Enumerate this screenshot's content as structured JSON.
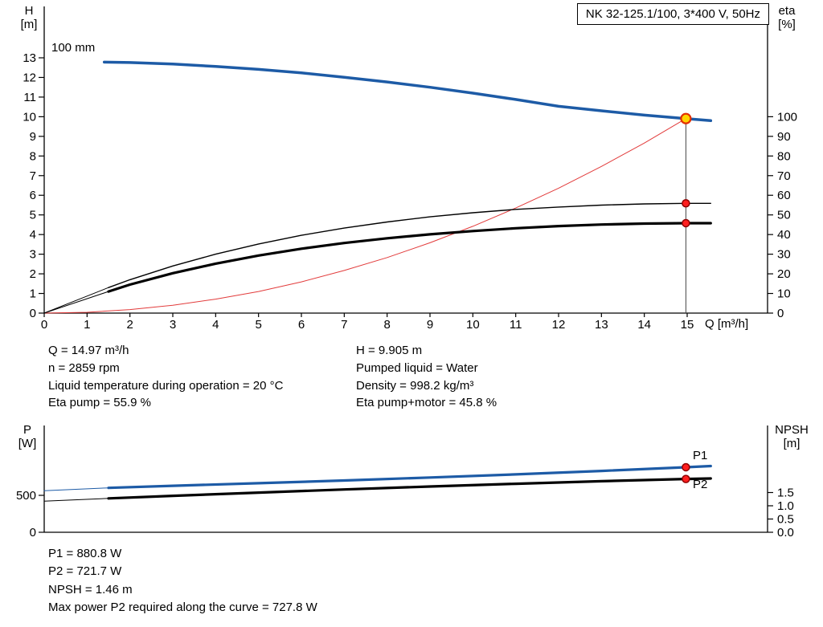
{
  "window": {
    "background": "#ffffff"
  },
  "title_box": {
    "text": "NK 32-125.1/100, 3*400 V, 50Hz"
  },
  "chart_data": [
    {
      "type": "line",
      "name": "qh-eta-chart",
      "x_axis": {
        "label": "Q [m³/h]",
        "min": 0,
        "max": 16.9,
        "ticks": [
          0,
          1,
          2,
          3,
          4,
          5,
          6,
          7,
          8,
          9,
          10,
          11,
          12,
          13,
          14,
          15
        ]
      },
      "y_left": {
        "label_lines": [
          "H",
          "[m]"
        ],
        "min": 0,
        "max": 15.6,
        "ticks": [
          0,
          1,
          2,
          3,
          4,
          5,
          6,
          7,
          8,
          9,
          10,
          11,
          12,
          13
        ]
      },
      "y_right": {
        "label_lines": [
          "eta",
          "[%]"
        ],
        "min": 0,
        "max": 156,
        "ticks": [
          0,
          10,
          20,
          30,
          40,
          50,
          60,
          70,
          80,
          90,
          100
        ]
      },
      "curve_label": "100 mm",
      "grid": false,
      "duty_point": {
        "q": 14.97,
        "h": 9.905
      },
      "curves": [
        {
          "name": "system-curve",
          "axis": "left",
          "color": "#e23b3b",
          "width": 1,
          "points": [
            [
              0,
              0
            ],
            [
              1,
              0.04
            ],
            [
              2,
              0.18
            ],
            [
              3,
              0.4
            ],
            [
              4,
              0.71
            ],
            [
              5,
              1.1
            ],
            [
              6,
              1.59
            ],
            [
              7,
              2.17
            ],
            [
              8,
              2.83
            ],
            [
              9,
              3.58
            ],
            [
              10,
              4.42
            ],
            [
              11,
              5.35
            ],
            [
              12,
              6.36
            ],
            [
              13,
              7.47
            ],
            [
              14,
              8.66
            ],
            [
              14.97,
              9.905
            ]
          ]
        },
        {
          "name": "eta-pump-lead",
          "axis": "right",
          "color": "#000000",
          "width": 1,
          "points": [
            [
              0,
              0
            ],
            [
              1.5,
              13
            ]
          ]
        },
        {
          "name": "eta-pump-curve",
          "series": "Eta pump",
          "axis": "right",
          "color": "#000000",
          "width": 1.4,
          "points": [
            [
              1.5,
              13
            ],
            [
              2,
              17
            ],
            [
              3,
              24
            ],
            [
              4,
              30
            ],
            [
              5,
              35.2
            ],
            [
              6,
              39.6
            ],
            [
              7,
              43.3
            ],
            [
              8,
              46.4
            ],
            [
              9,
              49
            ],
            [
              10,
              51.1
            ],
            [
              11,
              52.8
            ],
            [
              12,
              54
            ],
            [
              13,
              55
            ],
            [
              14,
              55.6
            ],
            [
              14.97,
              55.9
            ],
            [
              15.55,
              55.9
            ]
          ]
        },
        {
          "name": "eta-pump-motor-lead",
          "axis": "right",
          "color": "#000000",
          "width": 1,
          "points": [
            [
              0,
              0
            ],
            [
              1.5,
              11
            ]
          ]
        },
        {
          "name": "eta-pump-motor-curve",
          "series": "Eta pump+motor",
          "axis": "right",
          "color": "#000000",
          "width": 3.2,
          "points": [
            [
              1.5,
              11
            ],
            [
              2,
              14.5
            ],
            [
              3,
              20.3
            ],
            [
              4,
              25.2
            ],
            [
              5,
              29.3
            ],
            [
              6,
              32.8
            ],
            [
              7,
              35.7
            ],
            [
              8,
              38.1
            ],
            [
              9,
              40.1
            ],
            [
              10,
              41.8
            ],
            [
              11,
              43.2
            ],
            [
              12,
              44.3
            ],
            [
              13,
              45.1
            ],
            [
              14,
              45.6
            ],
            [
              14.97,
              45.8
            ],
            [
              15.55,
              45.8
            ]
          ]
        },
        {
          "name": "hq-curve",
          "series": "100 mm",
          "axis": "left",
          "color": "#1d5ba6",
          "width": 3.5,
          "points": [
            [
              1.4,
              12.78
            ],
            [
              2,
              12.76
            ],
            [
              3,
              12.68
            ],
            [
              4,
              12.56
            ],
            [
              5,
              12.41
            ],
            [
              6,
              12.23
            ],
            [
              7,
              12.01
            ],
            [
              8,
              11.77
            ],
            [
              9,
              11.5
            ],
            [
              10,
              11.2
            ],
            [
              11,
              10.88
            ],
            [
              12,
              10.53
            ],
            [
              13,
              10.3
            ],
            [
              14,
              10.08
            ],
            [
              14.97,
              9.905
            ],
            [
              15.55,
              9.8
            ]
          ]
        }
      ],
      "markers": [
        {
          "name": "eta-pump-point",
          "axis": "right",
          "q": 14.97,
          "v": 55.9,
          "r": 4.5,
          "fill": "#ff1f1f",
          "stroke": "#8f0000",
          "stroke_width": 1.5
        },
        {
          "name": "eta-pump-motor-point",
          "axis": "right",
          "q": 14.97,
          "v": 45.8,
          "r": 4.5,
          "fill": "#ff1f1f",
          "stroke": "#8f0000",
          "stroke_width": 1.5
        },
        {
          "name": "duty-point-marker",
          "axis": "left",
          "q": 14.97,
          "v": 9.905,
          "r": 6,
          "fill": "#ffd400",
          "stroke": "#e33000",
          "stroke_width": 2.2
        }
      ]
    },
    {
      "type": "line",
      "name": "power-npsh-chart",
      "x_axis": {
        "label": "",
        "min": 0,
        "max": 16.9,
        "ticks": []
      },
      "y_left": {
        "label_lines": [
          "P",
          "[W]"
        ],
        "min": 0,
        "max": 1445,
        "ticks": [
          0,
          500
        ]
      },
      "y_right": {
        "label_lines": [
          "NPSH",
          "[m]"
        ],
        "min": 0,
        "max": 4,
        "ticks": [
          "0.0",
          "0.5",
          "1.0",
          "1.5"
        ]
      },
      "curves": [
        {
          "name": "p1-lead",
          "axis": "left",
          "color": "#1d5ba6",
          "width": 1,
          "points": [
            [
              0,
              562
            ],
            [
              1.5,
              601
            ]
          ]
        },
        {
          "name": "p2-lead",
          "axis": "left",
          "color": "#000000",
          "width": 1,
          "points": [
            [
              0,
              421
            ],
            [
              1.5,
              459
            ]
          ]
        },
        {
          "name": "p2-curve",
          "series": "P2",
          "axis": "left",
          "color": "#000000",
          "width": 3.2,
          "points": [
            [
              1.5,
              459
            ],
            [
              3,
              494
            ],
            [
              5,
              537
            ],
            [
              7,
              579
            ],
            [
              9,
              620
            ],
            [
              11,
              657
            ],
            [
              13,
              691
            ],
            [
              14.97,
              721.7
            ],
            [
              15.55,
              727.8
            ]
          ]
        },
        {
          "name": "p1-curve",
          "series": "P1",
          "axis": "left",
          "color": "#1d5ba6",
          "width": 3.2,
          "points": [
            [
              1.5,
              601
            ],
            [
              3,
              629
            ],
            [
              5,
              664
            ],
            [
              7,
              701
            ],
            [
              9,
              741
            ],
            [
              11,
              784
            ],
            [
              13,
              830
            ],
            [
              14.97,
              880.8
            ],
            [
              15.55,
              897
            ]
          ]
        }
      ],
      "markers": [
        {
          "name": "p1-point",
          "axis": "left",
          "q": 14.97,
          "v": 880.8,
          "r": 4.5,
          "fill": "#ff1f1f",
          "stroke": "#8f0000",
          "stroke_width": 1.5
        },
        {
          "name": "p2-point",
          "axis": "left",
          "q": 14.97,
          "v": 721.7,
          "r": 4.5,
          "fill": "#ff1f1f",
          "stroke": "#8f0000",
          "stroke_width": 1.5
        }
      ],
      "curve_labels": [
        {
          "name": "p1-label",
          "text": "P1",
          "color": "#1d5ba6"
        },
        {
          "name": "p2-label",
          "text": "P2",
          "color": "#1d5ba6"
        }
      ]
    }
  ],
  "operating_point": {
    "left": [
      "Q = 14.97 m³/h",
      "n = 2859 rpm",
      "Liquid temperature during operation = 20 °C",
      "Eta pump = 55.9 %"
    ],
    "right": [
      "H = 9.905 m",
      "Pumped liquid = Water",
      "Density = 998.2 kg/m³",
      "Eta pump+motor = 45.8 %"
    ]
  },
  "footer": {
    "lines": [
      "P1 = 880.8 W",
      "P2 = 721.7 W",
      "NPSH = 1.46 m",
      "Max power P2 required along the curve = 727.8 W"
    ]
  }
}
